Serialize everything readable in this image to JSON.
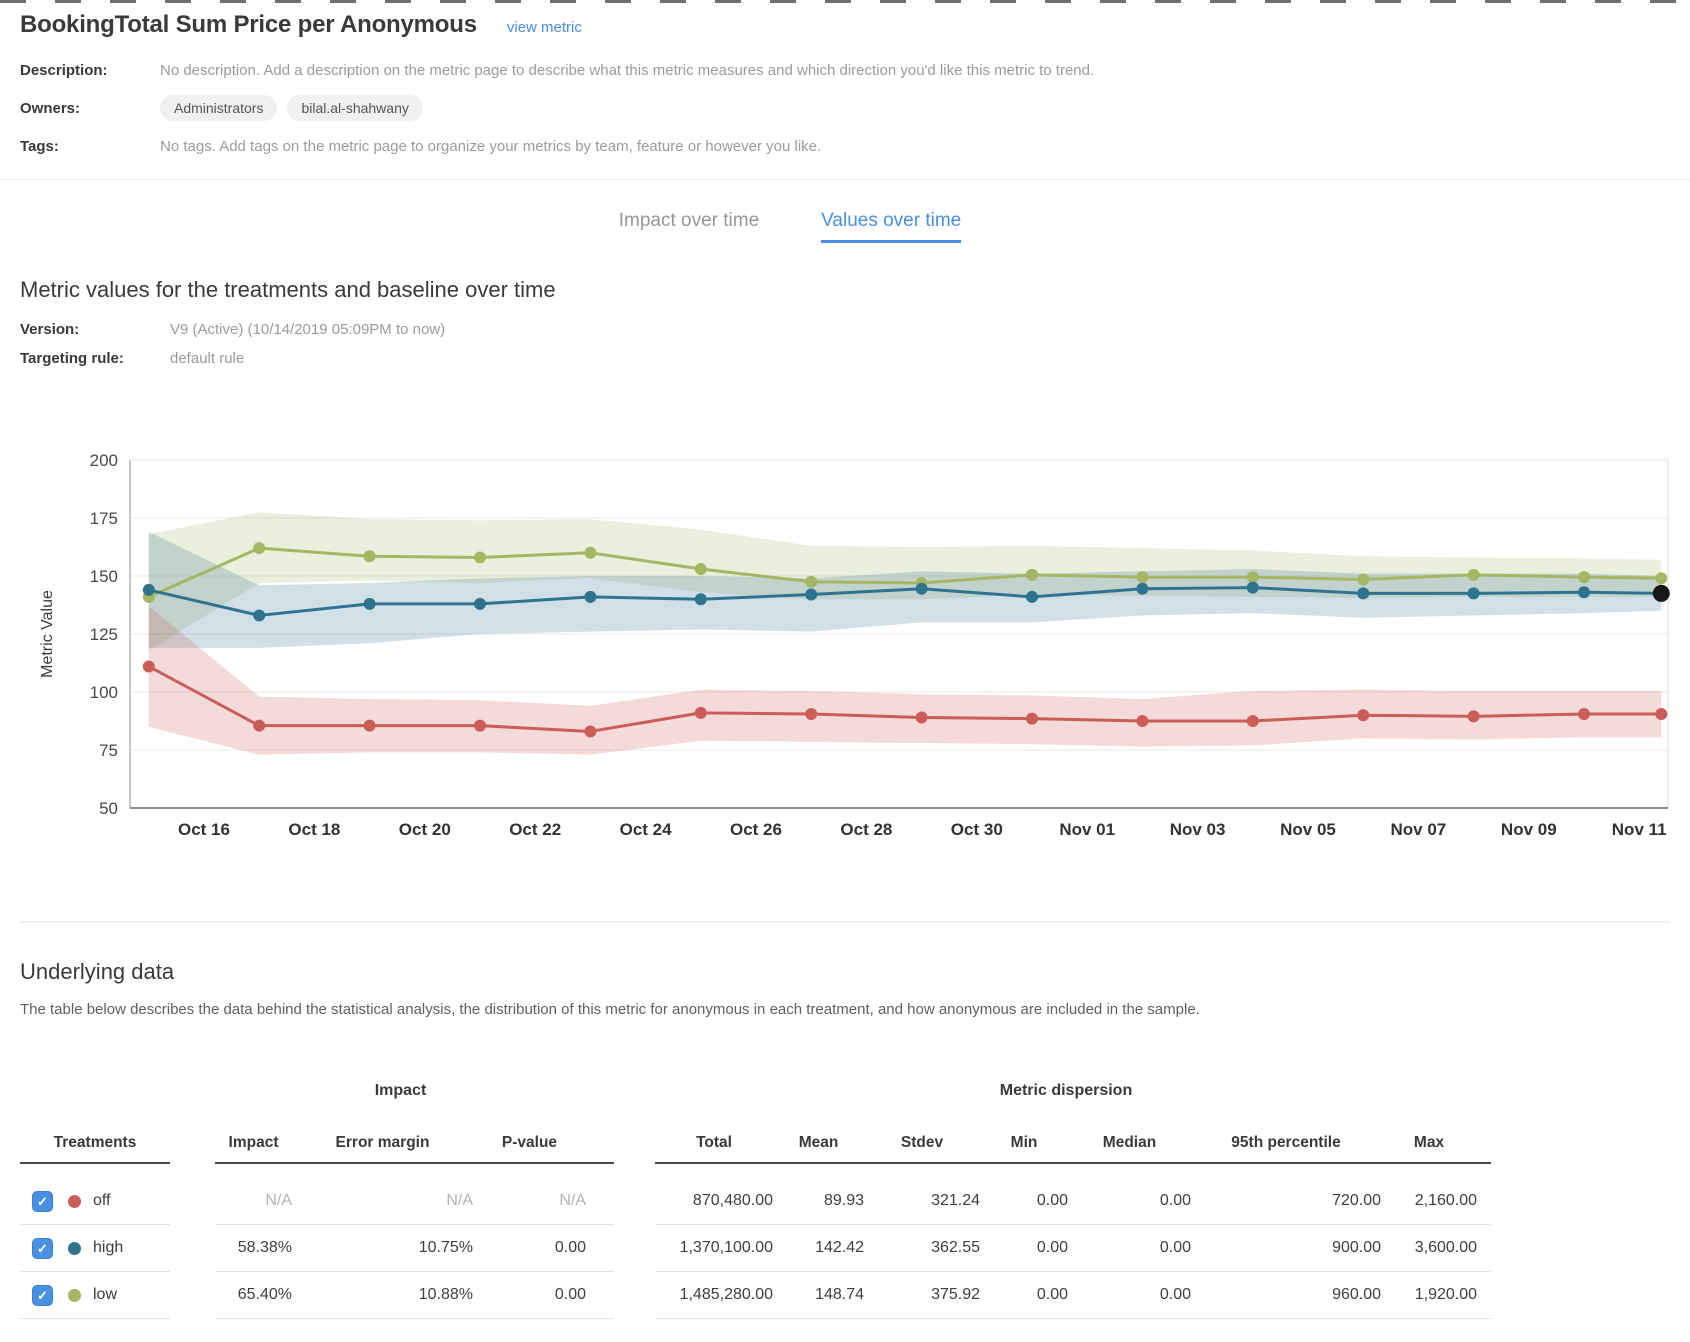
{
  "header": {
    "title": "BookingTotal Sum Price per Anonymous",
    "view_metric": "view metric"
  },
  "meta": {
    "description_label": "Description:",
    "description_text": "No description. Add a description on the metric page to describe what this metric measures and which direction you'd like this metric to trend.",
    "owners_label": "Owners:",
    "owners": [
      "Administrators",
      "bilal.al-shahwany"
    ],
    "tags_label": "Tags:",
    "tags_text": "No tags. Add tags on the metric page to organize your metrics by team, feature or however you like."
  },
  "tabs": [
    {
      "label": "Impact over time",
      "active": false
    },
    {
      "label": "Values over time",
      "active": true
    }
  ],
  "section": {
    "title": "Metric values for the treatments and baseline over time",
    "version_label": "Version:",
    "version_value": "V9 (Active) (10/14/2019 05:09PM to now)",
    "targeting_label": "Targeting rule:",
    "targeting_value": "default rule"
  },
  "chart_data": {
    "type": "line",
    "title": "Metric values for the treatments and baseline over time",
    "xlabel": "",
    "ylabel": "Metric Value",
    "ylim": [
      50,
      200
    ],
    "yticks": [
      200,
      175,
      150,
      125,
      100,
      75,
      50
    ],
    "grid": true,
    "legend_position": "none",
    "x_tick_labels": [
      "Oct 16",
      "Oct 18",
      "Oct 20",
      "Oct 22",
      "Oct 24",
      "Oct 26",
      "Oct 28",
      "Oct 30",
      "Nov 01",
      "Nov 03",
      "Nov 05",
      "Nov 07",
      "Nov 09",
      "Nov 11"
    ],
    "point_dates": [
      "Oct 15",
      "Oct 17",
      "Oct 19",
      "Oct 21",
      "Oct 23",
      "Oct 25",
      "Oct 27",
      "Oct 29",
      "Oct 31",
      "Nov 02",
      "Nov 04",
      "Nov 06",
      "Nov 08",
      "Nov 10",
      "Nov 11"
    ],
    "point_day_offsets": [
      -1,
      1,
      3,
      5,
      7,
      9,
      11,
      13,
      15,
      17,
      19,
      21,
      23,
      25,
      26.4
    ],
    "latest_point_color": "#161616",
    "series": [
      {
        "name": "low",
        "color": "#a5b763",
        "values": [
          141,
          162,
          158.5,
          158,
          160,
          153,
          147.5,
          147,
          150.5,
          149.5,
          149.5,
          148.5,
          150.5,
          149.5,
          149
        ],
        "band_lower": [
          118,
          147,
          148,
          147,
          149,
          143,
          140,
          140,
          142,
          141.5,
          141,
          140.5,
          141,
          141,
          141
        ],
        "band_upper": [
          168,
          177.5,
          174.5,
          174,
          174.5,
          170,
          163,
          162.5,
          163,
          162,
          161,
          158.5,
          158,
          157.5,
          157
        ]
      },
      {
        "name": "high",
        "color": "#2e7490",
        "latest_point_black": true,
        "values": [
          144,
          133,
          138,
          138,
          141,
          140,
          142,
          144.5,
          141,
          144.5,
          145,
          142.5,
          142.5,
          143,
          142.5
        ],
        "band_lower": [
          119,
          119,
          121,
          125,
          126,
          127,
          126,
          130,
          130,
          133,
          134,
          132,
          133,
          134,
          135
        ],
        "band_upper": [
          169,
          146,
          147,
          149,
          150,
          150,
          149,
          152,
          151,
          152,
          153,
          151,
          151,
          151,
          150
        ]
      },
      {
        "name": "off",
        "color": "#cb5d58",
        "values": [
          111,
          85.5,
          85.5,
          85.5,
          83,
          91,
          90.5,
          89,
          88.5,
          87.5,
          87.5,
          90,
          89.5,
          90.5,
          90.5
        ],
        "band_lower": [
          85,
          73,
          74,
          74,
          73,
          79,
          78.5,
          78,
          77.5,
          76.5,
          77,
          80,
          79.5,
          80.5,
          80.5
        ],
        "band_upper": [
          137,
          98,
          97,
          96.5,
          94,
          101,
          100.5,
          99,
          98.5,
          97,
          100.5,
          101,
          100.5,
          100.5,
          100.5
        ]
      }
    ]
  },
  "underlying": {
    "title": "Underlying data",
    "description": "The table below describes the data behind the statistical analysis, the distribution of this metric for anonymous in each treatment, and how anonymous are included in the sample."
  },
  "table": {
    "group_impact": "Impact",
    "group_dispersion": "Metric dispersion",
    "treatments_label": "Treatments",
    "checkbox_check": "✓",
    "columns": [
      "Impact",
      "Error margin",
      "P-value",
      "Total",
      "Mean",
      "Stdev",
      "Min",
      "Median",
      "95th percentile",
      "Max"
    ],
    "rows": [
      {
        "treatment": "off",
        "color": "#cb5d58",
        "checked": true,
        "impact": "N/A",
        "error_margin": "N/A",
        "p_value": "N/A",
        "total": "870,480.00",
        "mean": "89.93",
        "stdev": "321.24",
        "min": "0.00",
        "median": "0.00",
        "p95": "720.00",
        "max": "2,160.00"
      },
      {
        "treatment": "high",
        "color": "#2e7490",
        "checked": true,
        "impact": "58.38%",
        "error_margin": "10.75%",
        "p_value": "0.00",
        "total": "1,370,100.00",
        "mean": "142.42",
        "stdev": "362.55",
        "min": "0.00",
        "median": "0.00",
        "p95": "900.00",
        "max": "3,600.00"
      },
      {
        "treatment": "low",
        "color": "#a5b763",
        "checked": true,
        "impact": "65.40%",
        "error_margin": "10.88%",
        "p_value": "0.00",
        "total": "1,485,280.00",
        "mean": "148.74",
        "stdev": "375.92",
        "min": "0.00",
        "median": "0.00",
        "p95": "960.00",
        "max": "1,920.00"
      }
    ]
  },
  "colors": {
    "accent": "#4a90e2",
    "link": "#4a90e2",
    "off": "#cb5d58",
    "high": "#2e7490",
    "low": "#a5b763"
  }
}
